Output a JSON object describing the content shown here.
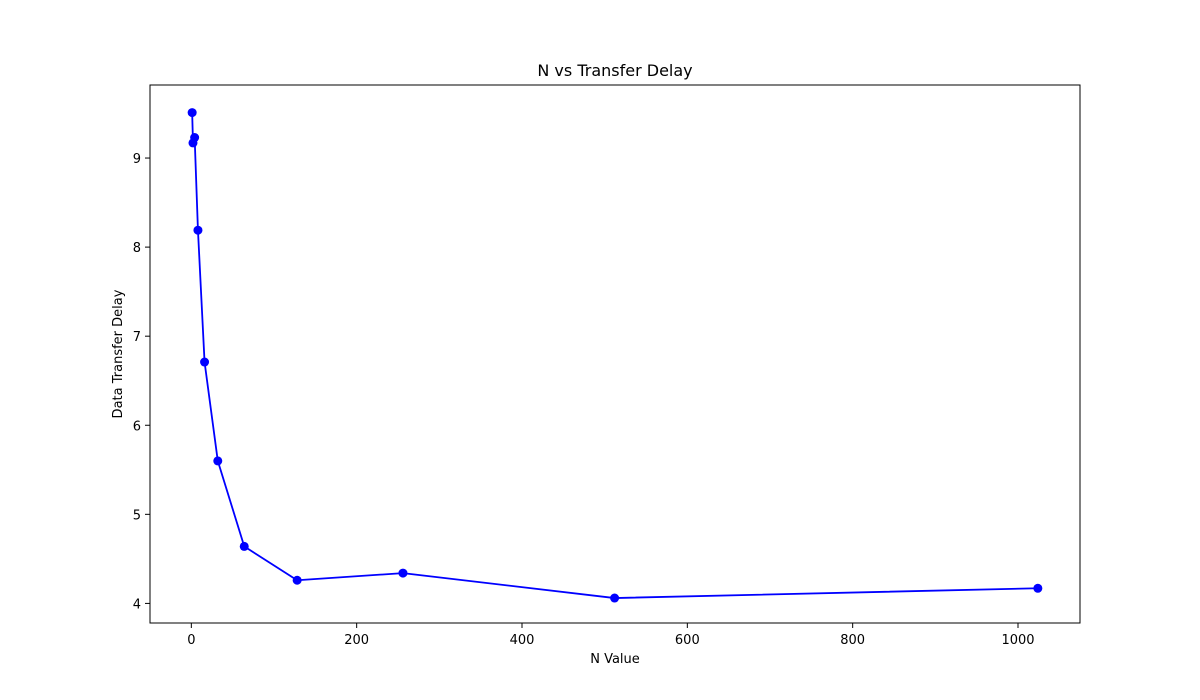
{
  "chart_data": {
    "type": "line",
    "title": "N vs Transfer Delay",
    "xlabel": "N Value",
    "ylabel": "Data Transfer Delay",
    "xlim": [
      -50,
      1075
    ],
    "ylim": [
      3.78,
      9.82
    ],
    "xticks": [
      0,
      200,
      400,
      600,
      800,
      1000
    ],
    "yticks": [
      4,
      5,
      6,
      7,
      8,
      9
    ],
    "xtick_labels": [
      "0",
      "200",
      "400",
      "600",
      "800",
      "1000"
    ],
    "ytick_labels": [
      "4",
      "5",
      "6",
      "7",
      "8",
      "9"
    ],
    "grid": false,
    "series": [
      {
        "color": "#0000ff",
        "marker": "circle",
        "x": [
          1,
          2,
          4,
          8,
          16,
          32,
          64,
          128,
          256,
          512,
          1024
        ],
        "y": [
          9.51,
          9.17,
          9.23,
          8.19,
          6.71,
          5.6,
          4.64,
          4.26,
          4.34,
          4.06,
          4.17
        ]
      }
    ]
  }
}
